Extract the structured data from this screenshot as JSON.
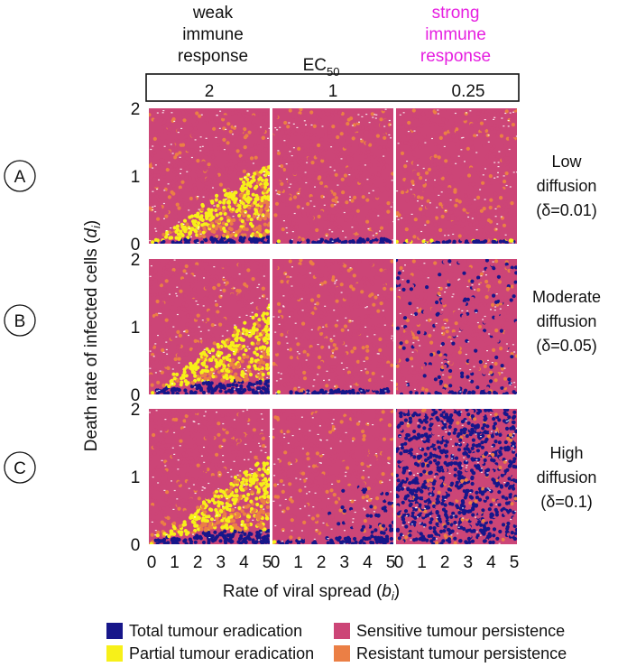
{
  "chart_data": {
    "type": "scatter",
    "title": "",
    "xlabel": "Rate of viral spread",
    "xlabel_var": "b",
    "xlabel_sub": "i",
    "ylabel": "Death rate of infected cells",
    "ylabel_var": "d",
    "ylabel_sub": "i",
    "x_ticks": [
      "0",
      "1",
      "2",
      "3",
      "4",
      "5"
    ],
    "y_ticks": [
      "0",
      "1",
      "2"
    ],
    "xlim": [
      0,
      5
    ],
    "ylim": [
      0,
      2
    ],
    "ec50_label": "EC",
    "ec50_sub": "50",
    "column_headers": [
      {
        "text": "weak immune response",
        "lines": [
          "weak",
          "immune",
          "response"
        ],
        "color": "#111111"
      },
      {
        "text": "",
        "lines": [],
        "color": "#111111"
      },
      {
        "text": "strong immune response",
        "lines": [
          "strong",
          "immune",
          "response"
        ],
        "color": "#e61fe0"
      }
    ],
    "ec50_values": [
      "2",
      "1",
      "0.25"
    ],
    "rows": [
      {
        "letter": "A",
        "label_lines": [
          "Low",
          "diffusion",
          "(δ=0.01)"
        ],
        "delta": 0.01
      },
      {
        "letter": "B",
        "label_lines": [
          "Moderate",
          "diffusion",
          "(δ=0.05)"
        ],
        "delta": 0.05
      },
      {
        "letter": "C",
        "label_lines": [
          "High",
          "diffusion",
          "(δ=0.1)"
        ],
        "delta": 0.1
      }
    ],
    "categories": [
      {
        "key": "total",
        "name": "Total tumour eradication",
        "color": "#17168a"
      },
      {
        "key": "partial",
        "name": "Partial tumour eradication",
        "color": "#f7f019"
      },
      {
        "key": "sensitive",
        "name": "Sensitive tumour persistence",
        "color": "#cc4577"
      },
      {
        "key": "resistant",
        "name": "Resistant tumour persistence",
        "color": "#eb7f45"
      }
    ],
    "panels": [
      {
        "row": "A",
        "ec50": "2",
        "partial_region": "d < 0.24·b (b≥0.5), expanding with b to d≈1.2 at b=5",
        "total_band_max_d": 0.1,
        "dark_scatter_fraction": 0.0
      },
      {
        "row": "A",
        "ec50": "1",
        "partial_region": "thin band d < 0.05",
        "total_band_max_d": 0.08,
        "dark_scatter_fraction": 0.0
      },
      {
        "row": "A",
        "ec50": "0.25",
        "partial_region": "thin band d < 0.03",
        "total_band_max_d": 0.04,
        "dark_scatter_fraction": 0.0
      },
      {
        "row": "B",
        "ec50": "2",
        "partial_region": "d < 0.25·b, expanding to d≈1.3 at b=5",
        "total_band_max_d": 0.2,
        "dark_scatter_fraction": 0.0
      },
      {
        "row": "B",
        "ec50": "1",
        "partial_region": "thin band d < 0.05",
        "total_band_max_d": 0.08,
        "dark_scatter_fraction": 0.0
      },
      {
        "row": "B",
        "ec50": "0.25",
        "partial_region": "none",
        "total_band_max_d": 0.04,
        "dark_scatter_fraction": 0.08
      },
      {
        "row": "C",
        "ec50": "2",
        "partial_region": "d < 0.25·b, expanding to d≈1.3 at b=5",
        "total_band_max_d": 0.2,
        "dark_scatter_fraction": 0.0
      },
      {
        "row": "C",
        "ec50": "1",
        "partial_region": "thin band d < 0.05",
        "total_band_max_d": 0.1,
        "dark_scatter_fraction": 0.15
      },
      {
        "row": "C",
        "ec50": "0.25",
        "partial_region": "none",
        "total_band_max_d": 0.0,
        "dark_scatter_fraction": 0.5
      }
    ]
  }
}
